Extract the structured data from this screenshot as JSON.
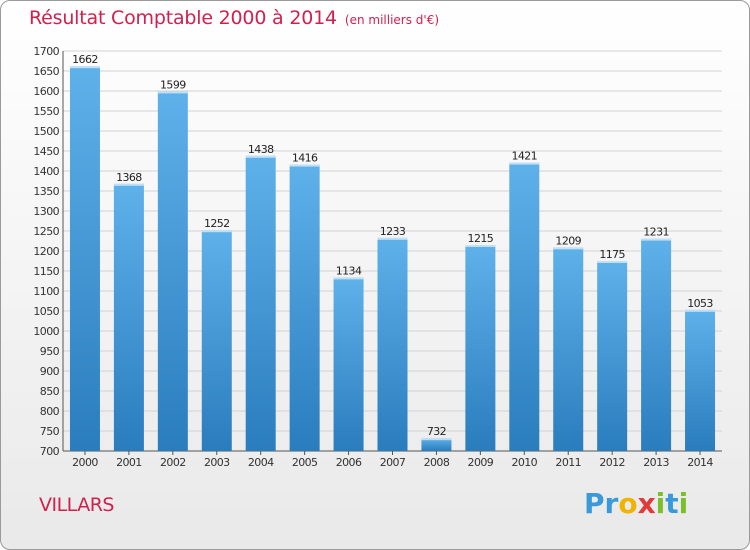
{
  "title": "Résultat Comptable 2000 à 2014",
  "subtitle": "(en milliers d'€)",
  "commune": "VILLARS",
  "brand": "Proxiti",
  "brand_letters": [
    {
      "ch": "P",
      "color": "#3a9ad9"
    },
    {
      "ch": "r",
      "color": "#3a9ad9"
    },
    {
      "ch": "o",
      "color": "#f0b400"
    },
    {
      "ch": "x",
      "color": "#e03a3a"
    },
    {
      "ch": "i",
      "color": "#7cbf2b"
    },
    {
      "ch": "t",
      "color": "#3a9ad9"
    },
    {
      "ch": "i",
      "color": "#7cbf2b"
    }
  ],
  "colors": {
    "accent": "#d0204e",
    "bar_top": "#5fb1ea",
    "bar_bottom": "#2a7dbd"
  },
  "chart_data": {
    "type": "bar",
    "title": "Résultat Comptable 2000 à 2014",
    "subtitle": "(en milliers d'€)",
    "xlabel": "",
    "ylabel": "",
    "categories": [
      "2000",
      "2001",
      "2002",
      "2003",
      "2004",
      "2005",
      "2006",
      "2007",
      "2008",
      "2009",
      "2010",
      "2011",
      "2012",
      "2013",
      "2014"
    ],
    "values": [
      1662,
      1368,
      1599,
      1252,
      1438,
      1416,
      1134,
      1233,
      732,
      1215,
      1421,
      1209,
      1175,
      1231,
      1053
    ],
    "ylim": [
      700,
      1700
    ],
    "ytick_step": 50,
    "grid": true,
    "legend": "none"
  }
}
